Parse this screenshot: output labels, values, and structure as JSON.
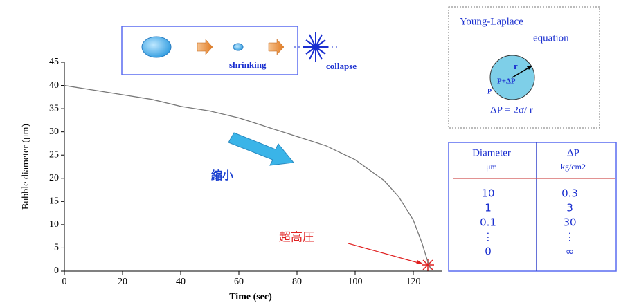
{
  "chart_data": {
    "type": "line",
    "x_label": "Time (sec)",
    "y_label": "Bubble diameter (μm)",
    "xlim": [
      0,
      130
    ],
    "xticks": [
      0,
      20,
      40,
      60,
      80,
      100,
      120
    ],
    "ylim": [
      0,
      45
    ],
    "yticks": [
      0,
      5,
      10,
      15,
      20,
      25,
      30,
      35,
      40,
      45
    ],
    "series": [
      {
        "color": "#777777",
        "x": [
          0,
          10,
          20,
          30,
          40,
          50,
          60,
          70,
          80,
          90,
          100,
          110,
          115,
          120,
          123,
          125,
          126
        ],
        "values": [
          40,
          39,
          38,
          37,
          35.5,
          34.5,
          33,
          31,
          29,
          27,
          24,
          19.5,
          16,
          11,
          6,
          2,
          0.5
        ]
      }
    ],
    "annotations": {
      "shrinking": "shrinking",
      "collapse": "collapse",
      "shrink_label": "縮小",
      "pressure_label": "超高圧",
      "young_title": "Young-Laplace",
      "young_sub": "equation",
      "radius": "r",
      "inner": "P+ΔP",
      "outer": "P",
      "formula": "ΔP =  2σ/ r"
    },
    "table": {
      "headers": [
        "Diameter",
        "ΔP"
      ],
      "units": [
        "μm",
        "kg/cm2"
      ],
      "rows": [
        [
          "10",
          "0.3"
        ],
        [
          "1",
          "3"
        ],
        [
          "0.1",
          "30"
        ],
        [
          "⋮",
          "⋮"
        ],
        [
          "0",
          "∞"
        ]
      ]
    }
  }
}
